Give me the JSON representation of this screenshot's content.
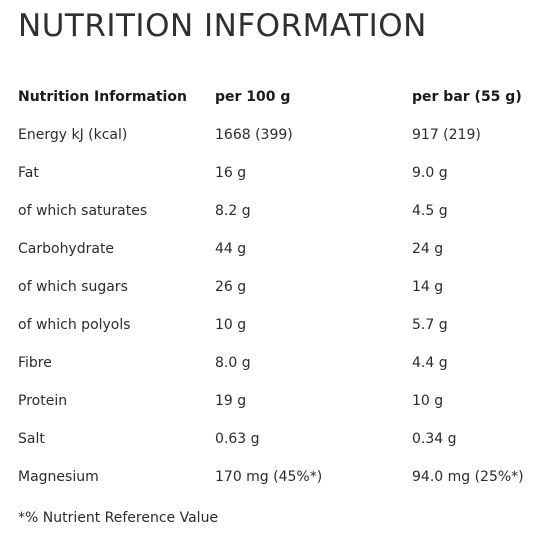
{
  "title": "NUTRITION INFORMATION",
  "table": {
    "headers": [
      "Nutrition Information",
      "per 100 g",
      "per bar (55 g)"
    ],
    "rows": [
      [
        "Energy kJ (kcal)",
        "1668 (399)",
        "917 (219)"
      ],
      [
        "Fat",
        "16 g",
        "9.0 g"
      ],
      [
        "of which saturates",
        "8.2 g",
        "4.5 g"
      ],
      [
        "Carbohydrate",
        "44 g",
        "24 g"
      ],
      [
        "of which sugars",
        "26 g",
        "14 g"
      ],
      [
        "of which polyols",
        "10 g",
        "5.7 g"
      ],
      [
        "Fibre",
        "8.0 g",
        "4.4 g"
      ],
      [
        "Protein",
        "19 g",
        "10 g"
      ],
      [
        "Salt",
        "0.63 g",
        "0.34 g"
      ],
      [
        "Magnesium",
        "170 mg (45%*)",
        "94.0 mg (25%*)"
      ]
    ]
  },
  "footnote": "*% Nutrient Reference Value"
}
